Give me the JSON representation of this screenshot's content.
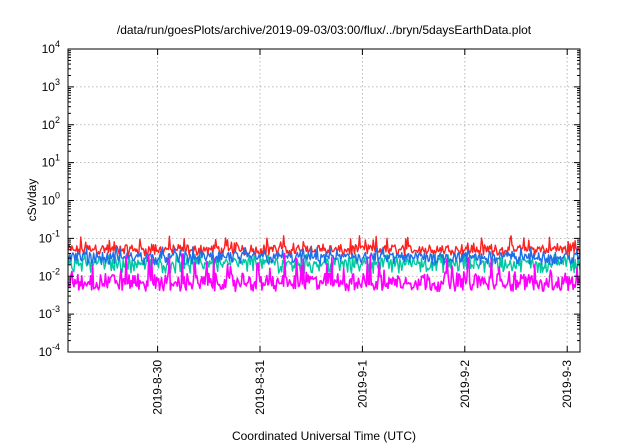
{
  "chart_data": {
    "type": "line",
    "title": "/data/run/goesPlots/archive/2019-09-03/03:00/flux/../bryn/5daysEarthData.plot",
    "xlabel": "Coordinated Universal Time (UTC)",
    "ylabel": "cSv/day",
    "yscale": "log",
    "ylim": [
      0.0001,
      10000
    ],
    "xlim": [
      "2019-08-29T03:00",
      "2019-09-03T03:00"
    ],
    "grid": true,
    "legend": "none",
    "y_ticks": [
      {
        "value": 0.0001,
        "base": "10",
        "exp": "-4"
      },
      {
        "value": 0.001,
        "base": "10",
        "exp": "-3"
      },
      {
        "value": 0.01,
        "base": "10",
        "exp": "-2"
      },
      {
        "value": 0.1,
        "base": "10",
        "exp": "-1"
      },
      {
        "value": 1,
        "base": "10",
        "exp": "0"
      },
      {
        "value": 10,
        "base": "10",
        "exp": "1"
      },
      {
        "value": 100,
        "base": "10",
        "exp": "2"
      },
      {
        "value": 1000,
        "base": "10",
        "exp": "3"
      },
      {
        "value": 10000,
        "base": "10",
        "exp": "4"
      }
    ],
    "x_ticks": [
      {
        "label": "2019-8-30",
        "value": "2019-08-30T00:00"
      },
      {
        "label": "2019-8-31",
        "value": "2019-08-31T00:00"
      },
      {
        "label": "2019-9-1",
        "value": "2019-09-01T00:00"
      },
      {
        "label": "2019-9-2",
        "value": "2019-09-02T00:00"
      },
      {
        "label": "2019-9-3",
        "value": "2019-09-03T00:00"
      }
    ],
    "series": [
      {
        "color": "#ff2020",
        "band": [
          0.035,
          0.12
        ],
        "median": 0.055
      },
      {
        "color": "#00c8a0",
        "band": [
          0.012,
          0.04
        ],
        "median": 0.025
      },
      {
        "color": "#1e6fe8",
        "band": [
          0.02,
          0.06
        ],
        "median": 0.035
      },
      {
        "color": "#ff00ff",
        "band": [
          0.004,
          0.04
        ],
        "median": 0.008
      }
    ]
  }
}
